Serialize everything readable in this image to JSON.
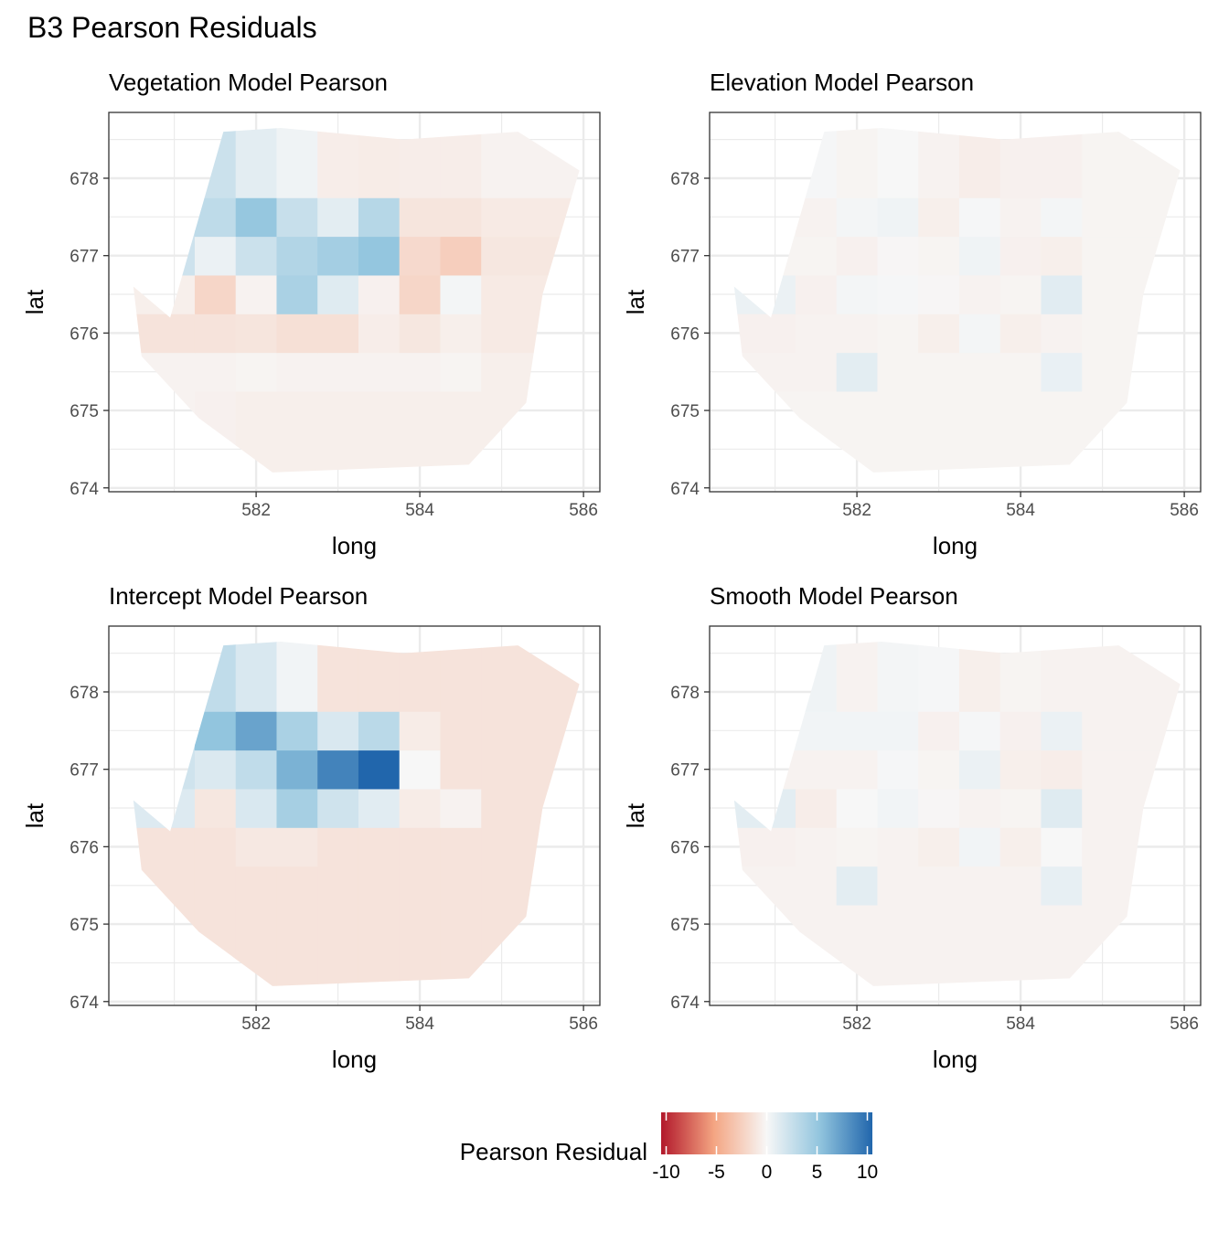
{
  "page": {
    "title": "B3 Pearson Residuals"
  },
  "legend": {
    "title": "Pearson Residual",
    "ticks": [
      "-10",
      "-5",
      "0",
      "5",
      "10"
    ],
    "tick_values": [
      -10,
      -5,
      0,
      5,
      10
    ],
    "limits": [
      -10.5,
      10.5
    ],
    "placement": "bottom"
  },
  "chart_data": [
    {
      "type": "heatmap",
      "title": "Vegetation Model Pearson",
      "xlabel": "long",
      "ylabel": "lat",
      "xlim": [
        580.2,
        586.2
      ],
      "ylim": [
        673.95,
        678.85
      ],
      "xticks": [
        582,
        584,
        586
      ],
      "yticks": [
        674,
        675,
        676,
        677,
        678
      ],
      "x": [
        581,
        581.5,
        582,
        582.5,
        583,
        583.5,
        584,
        584.5,
        585
      ],
      "y": [
        675,
        675.5,
        676,
        676.5,
        677,
        677.5,
        678
      ],
      "values": [
        [
          -0.3,
          -0.4,
          -0.5,
          -0.5,
          -0.5,
          -0.5,
          -0.5,
          -0.5,
          -0.5
        ],
        [
          -0.3,
          -0.3,
          -0.2,
          -0.3,
          -0.3,
          -0.3,
          -0.3,
          -0.2,
          -0.5
        ],
        [
          -1.2,
          -1.2,
          -1.1,
          -1.4,
          -1.4,
          -0.6,
          -1.0,
          -0.5,
          -0.8
        ],
        [
          -0.5,
          -2.0,
          -0.3,
          3.8,
          1.2,
          -0.4,
          -2.0,
          0.2,
          -0.8
        ],
        [
          2.1,
          0.6,
          2.2,
          3.4,
          4.1,
          4.9,
          -1.8,
          -2.5,
          -1.0
        ],
        [
          2.4,
          2.8,
          4.8,
          2.4,
          1.0,
          3.2,
          -1.1,
          -1.1,
          -0.8
        ],
        [
          null,
          2.2,
          1.0,
          0.4,
          -0.6,
          -0.7,
          -0.6,
          -0.6,
          -0.3
        ]
      ]
    },
    {
      "type": "heatmap",
      "title": "Elevation Model Pearson",
      "xlabel": "long",
      "ylabel": "lat",
      "xlim": [
        580.2,
        586.2
      ],
      "ylim": [
        673.95,
        678.85
      ],
      "xticks": [
        582,
        584,
        586
      ],
      "yticks": [
        674,
        675,
        676,
        677,
        678
      ],
      "x": [
        581,
        581.5,
        582,
        582.5,
        583,
        583.5,
        584,
        584.5,
        585
      ],
      "y": [
        675,
        675.5,
        676,
        676.5,
        677,
        677.5,
        678
      ],
      "values": [
        [
          -0.2,
          -0.2,
          -0.2,
          -0.2,
          -0.2,
          -0.2,
          -0.2,
          -0.2,
          -0.2
        ],
        [
          -0.3,
          -0.3,
          1.0,
          -0.2,
          -0.2,
          -0.2,
          -0.2,
          0.7,
          -0.2
        ],
        [
          -0.4,
          -0.3,
          -0.3,
          -0.2,
          -0.5,
          0.2,
          -0.5,
          -0.3,
          -0.2
        ],
        [
          0.6,
          -0.4,
          0.2,
          0.1,
          -0.1,
          -0.3,
          -0.2,
          1.1,
          -0.2
        ],
        [
          -0.2,
          -0.2,
          -0.4,
          -0.1,
          -0.2,
          0.4,
          -0.4,
          -0.5,
          -0.2
        ],
        [
          -0.2,
          -0.3,
          0.2,
          0.4,
          -0.5,
          0.1,
          -0.3,
          0.2,
          -0.2
        ],
        [
          0.2,
          0.1,
          -0.2,
          0.0,
          -0.3,
          -0.6,
          -0.4,
          -0.4,
          -0.2
        ]
      ]
    },
    {
      "type": "heatmap",
      "title": "Intercept Model Pearson",
      "xlabel": "long",
      "ylabel": "lat",
      "xlim": [
        580.2,
        586.2
      ],
      "ylim": [
        673.95,
        678.85
      ],
      "xticks": [
        582,
        584,
        586
      ],
      "yticks": [
        674,
        675,
        676,
        677,
        678
      ],
      "x": [
        581,
        581.5,
        582,
        582.5,
        583,
        583.5,
        584,
        584.5,
        585
      ],
      "y": [
        675,
        675.5,
        676,
        676.5,
        677,
        677.5,
        678
      ],
      "values": [
        [
          -1.2,
          -1.2,
          -1.2,
          -1.2,
          -1.2,
          -1.2,
          -1.2,
          -1.2,
          -1.2
        ],
        [
          -1.2,
          -1.2,
          -1.2,
          -1.2,
          -1.2,
          -1.2,
          -1.2,
          -1.2,
          -1.2
        ],
        [
          -1.2,
          -1.2,
          -0.9,
          -0.9,
          -1.2,
          -1.2,
          -1.2,
          -1.2,
          -1.2
        ],
        [
          1.3,
          -1.0,
          1.5,
          4.0,
          2.0,
          1.1,
          -0.7,
          -0.3,
          -1.2
        ],
        [
          2.0,
          1.4,
          2.7,
          6.0,
          8.5,
          10.0,
          0.0,
          -1.2,
          -1.2
        ],
        [
          2.8,
          5.0,
          6.8,
          3.8,
          1.5,
          3.0,
          -0.7,
          -1.2,
          -1.2
        ],
        [
          null,
          2.7,
          1.5,
          0.3,
          -1.2,
          -1.2,
          -1.2,
          -1.2,
          -1.2
        ]
      ]
    },
    {
      "type": "heatmap",
      "title": "Smooth Model Pearson",
      "xlabel": "long",
      "ylabel": "lat",
      "xlim": [
        580.2,
        586.2
      ],
      "ylim": [
        673.95,
        678.85
      ],
      "xticks": [
        582,
        584,
        586
      ],
      "yticks": [
        674,
        675,
        676,
        677,
        678
      ],
      "x": [
        581,
        581.5,
        582,
        582.5,
        583,
        583.5,
        584,
        584.5,
        585
      ],
      "y": [
        675,
        675.5,
        676,
        676.5,
        677,
        677.5,
        678
      ],
      "values": [
        [
          -0.3,
          -0.3,
          -0.3,
          -0.3,
          -0.3,
          -0.3,
          -0.3,
          -0.3,
          -0.3
        ],
        [
          -0.3,
          -0.3,
          1.0,
          -0.3,
          -0.3,
          -0.3,
          -0.3,
          0.8,
          -0.3
        ],
        [
          -0.4,
          -0.3,
          -0.2,
          -0.3,
          -0.5,
          0.3,
          -0.5,
          0.0,
          -0.3
        ],
        [
          1.0,
          -0.6,
          0.0,
          0.3,
          -0.1,
          -0.3,
          -0.2,
          1.2,
          -0.3
        ],
        [
          -0.3,
          -0.3,
          -0.3,
          0.1,
          -0.2,
          0.6,
          -0.5,
          -0.6,
          -0.3
        ],
        [
          0.3,
          0.3,
          0.3,
          0.3,
          -0.4,
          0.1,
          -0.4,
          0.6,
          -0.3
        ],
        [
          0.2,
          0.4,
          -0.3,
          0.2,
          0.1,
          -0.5,
          -0.2,
          -0.3,
          -0.3
        ]
      ]
    }
  ]
}
